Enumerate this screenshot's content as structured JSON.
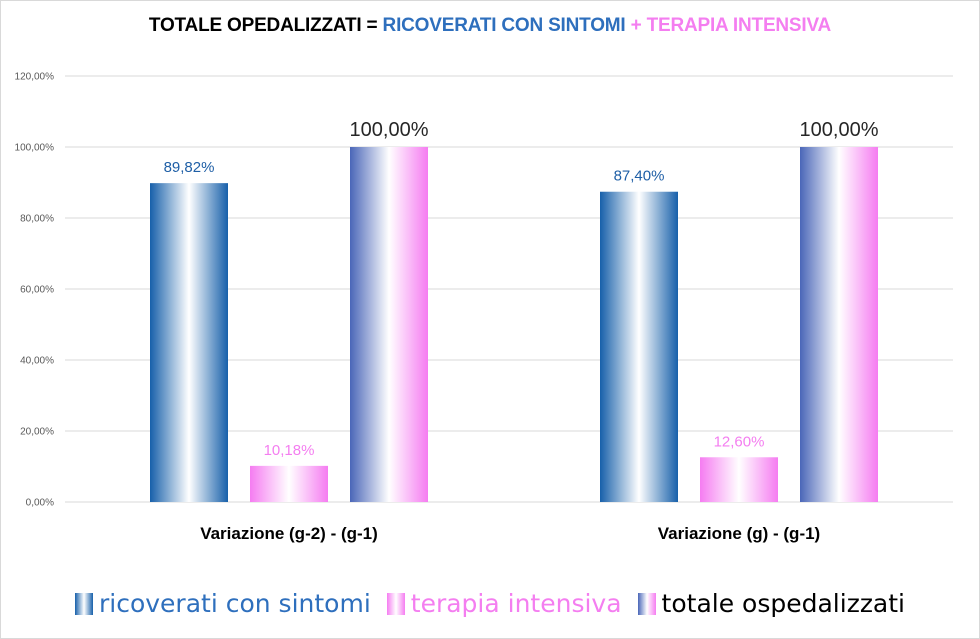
{
  "title": {
    "part1": "TOTALE OPEDALIZZATI = ",
    "part2": "RICOVERATI CON SINTOMI",
    "part3": " + TERAPIA INTENSIVA"
  },
  "colors": {
    "title_text": "#000000",
    "ricoverati": "#1f6fb5",
    "terapia": "#f47ef0",
    "totale_blue": "#4a6bbf",
    "totale_pink": "#f47ef0",
    "gridline": "#d9d9d9"
  },
  "chart_data": {
    "type": "bar",
    "title": "TOTALE OPEDALIZZATI = RICOVERATI CON SINTOMI + TERAPIA INTENSIVA",
    "categories": [
      "Variazione (g-2) - (g-1)",
      "Variazione (g) - (g-1)"
    ],
    "series": [
      {
        "name": "ricoverati con sintomi",
        "values": [
          89.82,
          87.4
        ],
        "labels": [
          "89,82%",
          "87,40%"
        ]
      },
      {
        "name": "terapia intensiva",
        "values": [
          10.18,
          12.6
        ],
        "labels": [
          "10,18%",
          "12,60%"
        ]
      },
      {
        "name": "totale ospedalizzati",
        "values": [
          100.0,
          100.0
        ],
        "labels": [
          "100,00%",
          "100,00%"
        ]
      }
    ],
    "ylim": [
      0,
      120
    ],
    "yticks": [
      "0,00%",
      "20,00%",
      "40,00%",
      "60,00%",
      "80,00%",
      "100,00%",
      "120,00%"
    ],
    "grid": true,
    "legend_position": "bottom"
  }
}
